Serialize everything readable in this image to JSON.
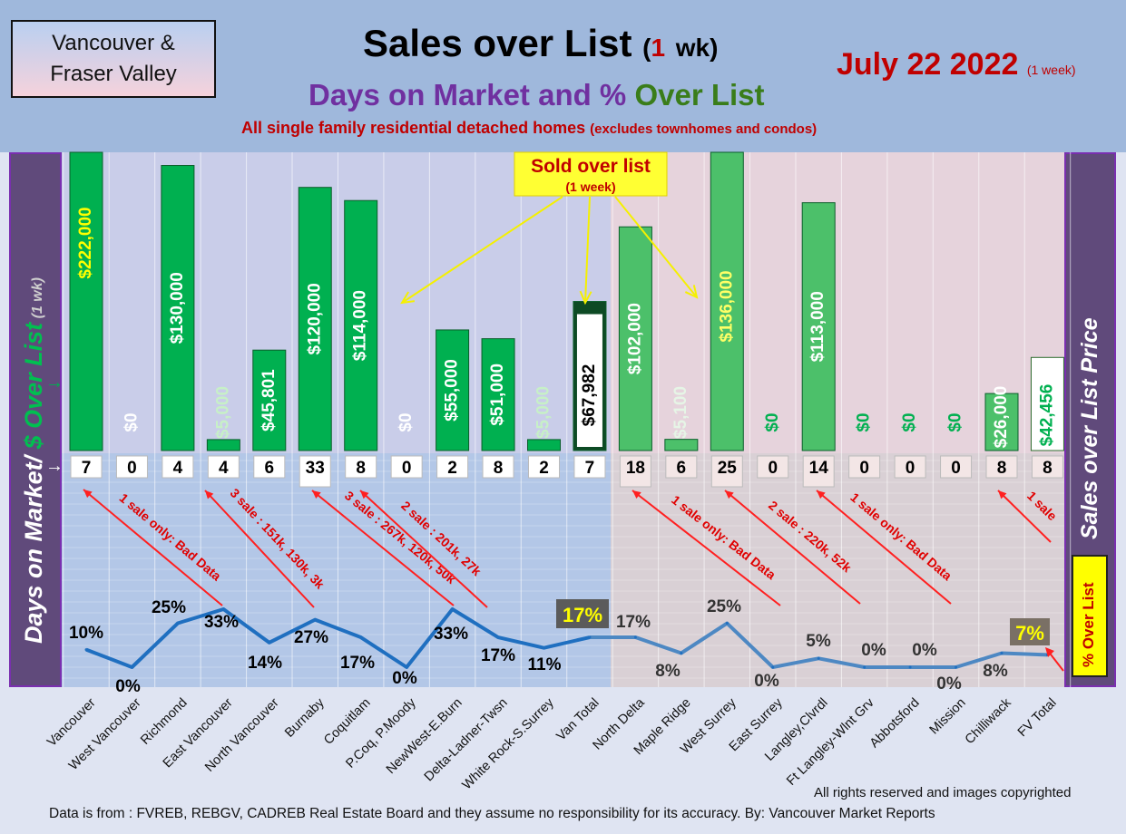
{
  "header": {
    "region": [
      "Vancouver &",
      "Fraser Valley"
    ],
    "title_main": "Sales over List",
    "title_open": "(",
    "title_num": "1",
    "title_rest": "wk)",
    "subtitle_a": "Days on Market and % ",
    "subtitle_b": "Over List",
    "note_a": "All single family residential detached homes ",
    "note_b": "(excludes townhomes and condos)",
    "date": "July 22  2022",
    "date_note": "(1 week)"
  },
  "left_axis": {
    "label_a": "Days on Market/ ",
    "label_b": "$ Over List",
    "label_c": " (1 wk)"
  },
  "right_axis": {
    "label": "Sales over List Price",
    "pct_label": "% Over List"
  },
  "callout": {
    "title": "Sold over list",
    "sub": "(1 week)"
  },
  "colors": {
    "bar": "#00b050",
    "bar_fv": "#4cc06a",
    "line": "#1f6fc0",
    "line_fv": "#4d88c3",
    "van_bg": "#c9cde9",
    "fv_bg": "#e6d3dc"
  },
  "chart_data": {
    "type": "bar",
    "categories": [
      "Vancouver",
      "West Vancouver",
      "Richmond",
      "East Vancouver",
      "North Vancouver",
      "Burnaby",
      "Coquitlam",
      "P.Coq, P.Moody",
      "NewWest-E.Burn",
      "Delta-Ladner-Twsn",
      "White Rock-S.Surrey",
      "Van Total",
      "North Delta",
      "Maple Ridge",
      "West Surrey",
      "East Surrey",
      "Langley,Clvrdl",
      "Ft Langley-Wlnt Grv",
      "Abbotsford",
      "Mission",
      "Chilliwack",
      "FV Total"
    ],
    "series": [
      {
        "name": "$ Over List",
        "values": [
          222000,
          0,
          130000,
          5000,
          45801,
          120000,
          114000,
          0,
          55000,
          51000,
          5000,
          67982,
          102000,
          5100,
          136000,
          0,
          113000,
          0,
          0,
          0,
          26000,
          42456
        ],
        "labels": [
          "$222,000",
          "$0",
          "$130,000",
          "$5,000",
          "$45,801",
          "$120,000",
          "$114,000",
          "$0",
          "$55,000",
          "$51,000",
          "$5,000",
          "$67,982",
          "$102,000",
          "$5,100",
          "$136,000",
          "$0",
          "$113,000",
          "$0",
          "$0",
          "$0",
          "$26,000",
          "$42,456"
        ]
      },
      {
        "name": "Days on Market",
        "values": [
          7,
          0,
          4,
          4,
          6,
          33,
          8,
          0,
          2,
          8,
          2,
          7,
          18,
          6,
          25,
          0,
          14,
          0,
          0,
          0,
          8,
          8
        ]
      },
      {
        "name": "% Over List",
        "values": [
          10,
          0,
          25,
          33,
          14,
          27,
          17,
          0,
          33,
          17,
          11,
          17,
          17,
          8,
          25,
          0,
          5,
          0,
          0,
          0,
          8,
          7
        ],
        "labels": [
          "10%",
          "0%",
          "25%",
          "33%",
          "14%",
          "27%",
          "17%",
          "0%",
          "33%",
          "17%",
          "11%",
          "17%",
          "17%",
          "8%",
          "25%",
          "0%",
          "5%",
          "0%",
          "0%",
          "0%",
          "8%",
          "7%"
        ]
      }
    ],
    "annotations": [
      "1 sale only: Bad Data",
      "3 sale : 151k, 130k, 3k",
      "3 sale : 267k, 120k, 50k",
      "2 sale : 201k, 27k",
      "1 sale only: Bad Data",
      "2 sale : 220k, 52k",
      "1 sale only: Bad Data",
      "1 sale"
    ]
  },
  "footer": {
    "rights": "All rights reserved and  images copyrighted",
    "source": "Data is from : FVREB, REBGV, CADREB Real Estate Board and they assume no responsibility for its accuracy. By: Vancouver Market Reports"
  }
}
